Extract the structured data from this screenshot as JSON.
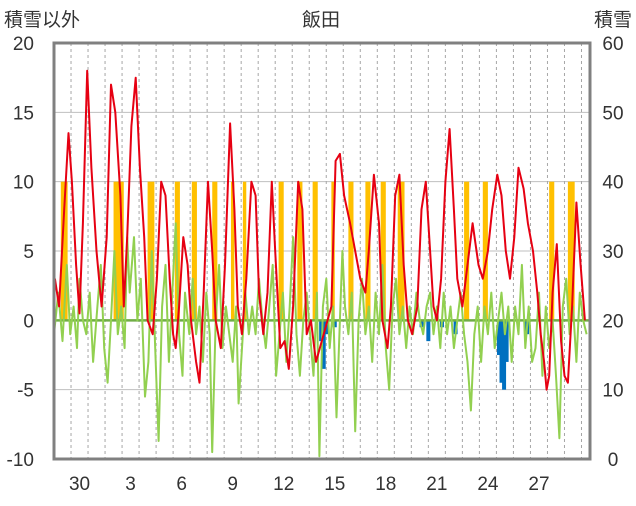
{
  "chart_data": {
    "type": "line",
    "title": "飯田",
    "left_axis_label": "積雪以外",
    "right_axis_label": "積雪",
    "y_left": {
      "min": -10,
      "max": 20,
      "ticks": [
        -10,
        -5,
        0,
        5,
        10,
        15,
        20
      ]
    },
    "y_right": {
      "min": 0,
      "max": 60,
      "ticks": [
        0,
        10,
        20,
        30,
        40,
        50,
        60
      ]
    },
    "x": {
      "min": 0,
      "max": 31.5,
      "ticks": [
        {
          "v": 1.5,
          "label": "30"
        },
        {
          "v": 4.5,
          "label": "3"
        },
        {
          "v": 7.5,
          "label": "6"
        },
        {
          "v": 10.5,
          "label": "9"
        },
        {
          "v": 13.5,
          "label": "12"
        },
        {
          "v": 16.5,
          "label": "15"
        },
        {
          "v": 19.5,
          "label": "18"
        },
        {
          "v": 22.5,
          "label": "21"
        },
        {
          "v": 25.5,
          "label": "24"
        },
        {
          "v": 28.5,
          "label": "27"
        }
      ]
    },
    "grid": true,
    "colors": {
      "temperature": "#e60012",
      "sunshine": "#ffc000",
      "wind": "#92d050",
      "precipitation": "#0070c0",
      "baseline": "#7030a0",
      "zero_line": "#70ad47",
      "frame": "#808080"
    },
    "sunshine_bars": [
      [
        0.4,
        0.8
      ],
      [
        3.5,
        4.1
      ],
      [
        5.5,
        5.9
      ],
      [
        7.1,
        7.4
      ],
      [
        8.1,
        8.4
      ],
      [
        9.3,
        9.6
      ],
      [
        10.4,
        10.6
      ],
      [
        11.1,
        11.3
      ],
      [
        13.2,
        13.5
      ],
      [
        14.3,
        14.6
      ],
      [
        15.2,
        15.5
      ],
      [
        16.3,
        16.5
      ],
      [
        17.3,
        17.6
      ],
      [
        18.3,
        18.6
      ],
      [
        19.2,
        19.5
      ],
      [
        20.2,
        20.6
      ],
      [
        24.1,
        24.4
      ],
      [
        25.2,
        25.5
      ],
      [
        29.1,
        29.4
      ],
      [
        30.2,
        30.6
      ]
    ],
    "precipitation_bars": [
      {
        "x": 15.7,
        "v": -1.5
      },
      {
        "x": 15.85,
        "v": -3.5
      },
      {
        "x": 16.05,
        "v": -1.0
      },
      {
        "x": 16.5,
        "v": -0.5
      },
      {
        "x": 21.6,
        "v": -0.5
      },
      {
        "x": 22.0,
        "v": -1.5
      },
      {
        "x": 22.8,
        "v": -0.5
      },
      {
        "x": 23.6,
        "v": -1.0
      },
      {
        "x": 26.15,
        "v": -2.5
      },
      {
        "x": 26.3,
        "v": -4.5
      },
      {
        "x": 26.45,
        "v": -5.0
      },
      {
        "x": 26.6,
        "v": -3.0
      },
      {
        "x": 27.8,
        "v": -1.0
      }
    ],
    "temperature_series": [
      [
        0.05,
        3
      ],
      [
        0.3,
        1
      ],
      [
        0.6,
        8
      ],
      [
        0.85,
        13.5
      ],
      [
        1.05,
        10
      ],
      [
        1.3,
        4
      ],
      [
        1.5,
        0.5
      ],
      [
        1.7,
        7
      ],
      [
        1.95,
        18
      ],
      [
        2.2,
        11
      ],
      [
        2.5,
        5
      ],
      [
        2.8,
        1
      ],
      [
        3.1,
        6
      ],
      [
        3.35,
        17
      ],
      [
        3.6,
        15
      ],
      [
        3.9,
        9
      ],
      [
        4.1,
        1
      ],
      [
        4.3,
        6
      ],
      [
        4.55,
        14
      ],
      [
        4.8,
        17.5
      ],
      [
        5.05,
        11
      ],
      [
        5.3,
        6
      ],
      [
        5.5,
        0
      ],
      [
        5.8,
        -1
      ],
      [
        6.05,
        3
      ],
      [
        6.3,
        10
      ],
      [
        6.55,
        9
      ],
      [
        6.8,
        3
      ],
      [
        7.0,
        -1
      ],
      [
        7.15,
        -2
      ],
      [
        7.35,
        1
      ],
      [
        7.6,
        6
      ],
      [
        7.85,
        4
      ],
      [
        8.05,
        0
      ],
      [
        8.35,
        -3
      ],
      [
        8.55,
        -4.5
      ],
      [
        8.8,
        2
      ],
      [
        9.05,
        10
      ],
      [
        9.3,
        5
      ],
      [
        9.5,
        0
      ],
      [
        9.8,
        -2
      ],
      [
        10.05,
        4
      ],
      [
        10.35,
        14.2
      ],
      [
        10.6,
        8
      ],
      [
        10.8,
        1
      ],
      [
        11.05,
        -1
      ],
      [
        11.3,
        3
      ],
      [
        11.6,
        10
      ],
      [
        11.85,
        9
      ],
      [
        12.05,
        2
      ],
      [
        12.3,
        -1
      ],
      [
        12.55,
        2
      ],
      [
        12.8,
        10
      ],
      [
        13.0,
        5
      ],
      [
        13.3,
        -2
      ],
      [
        13.55,
        -1.5
      ],
      [
        13.8,
        -3.5
      ],
      [
        14.05,
        1
      ],
      [
        14.35,
        10
      ],
      [
        14.6,
        8
      ],
      [
        14.85,
        -1
      ],
      [
        15.1,
        0
      ],
      [
        15.4,
        -3
      ],
      [
        16.3,
        1
      ],
      [
        16.55,
        11.5
      ],
      [
        16.8,
        12
      ],
      [
        17.05,
        9
      ],
      [
        17.4,
        7
      ],
      [
        17.7,
        5
      ],
      [
        18.0,
        3
      ],
      [
        18.3,
        2
      ],
      [
        18.5,
        5
      ],
      [
        18.8,
        10.5
      ],
      [
        19.1,
        7
      ],
      [
        19.3,
        0
      ],
      [
        19.6,
        -2
      ],
      [
        19.8,
        1
      ],
      [
        20.05,
        9
      ],
      [
        20.3,
        10.5
      ],
      [
        20.55,
        4
      ],
      [
        20.8,
        0
      ],
      [
        21.05,
        -1
      ],
      [
        21.35,
        1
      ],
      [
        21.6,
        8
      ],
      [
        21.85,
        10
      ],
      [
        22.1,
        5
      ],
      [
        22.3,
        1
      ],
      [
        22.5,
        0
      ],
      [
        22.75,
        3
      ],
      [
        23.0,
        10
      ],
      [
        23.25,
        13.8
      ],
      [
        23.5,
        8
      ],
      [
        23.7,
        3
      ],
      [
        24.0,
        1
      ],
      [
        24.3,
        4
      ],
      [
        24.6,
        7
      ],
      [
        24.95,
        4
      ],
      [
        25.2,
        3
      ],
      [
        25.5,
        5
      ],
      [
        25.75,
        8
      ],
      [
        26.05,
        10.5
      ],
      [
        26.3,
        9
      ],
      [
        26.55,
        5
      ],
      [
        26.8,
        3
      ],
      [
        27.05,
        6
      ],
      [
        27.3,
        11
      ],
      [
        27.6,
        9.5
      ],
      [
        27.85,
        7
      ],
      [
        28.15,
        5
      ],
      [
        28.4,
        2
      ],
      [
        28.6,
        -1
      ],
      [
        28.8,
        -3
      ],
      [
        28.95,
        -5
      ],
      [
        29.1,
        -4
      ],
      [
        29.3,
        2
      ],
      [
        29.55,
        5.5
      ],
      [
        29.8,
        -1.5
      ],
      [
        30.0,
        -4
      ],
      [
        30.2,
        -4.5
      ],
      [
        30.45,
        1
      ],
      [
        30.7,
        8.5
      ],
      [
        30.95,
        4
      ],
      [
        31.2,
        0
      ]
    ],
    "wind_series": [
      [
        0.0,
        -1
      ],
      [
        0.25,
        2
      ],
      [
        0.5,
        -1.5
      ],
      [
        0.75,
        4
      ],
      [
        0.95,
        -1
      ],
      [
        1.15,
        1
      ],
      [
        1.35,
        -2
      ],
      [
        1.5,
        3
      ],
      [
        1.7,
        0
      ],
      [
        1.9,
        -1
      ],
      [
        2.1,
        2
      ],
      [
        2.3,
        -3
      ],
      [
        2.55,
        1
      ],
      [
        2.75,
        4
      ],
      [
        2.95,
        -2
      ],
      [
        3.15,
        -4.5
      ],
      [
        3.35,
        0
      ],
      [
        3.55,
        5
      ],
      [
        3.75,
        -1
      ],
      [
        3.95,
        1
      ],
      [
        4.15,
        -2
      ],
      [
        4.3,
        6
      ],
      [
        4.45,
        2
      ],
      [
        4.7,
        6
      ],
      [
        4.9,
        0
      ],
      [
        5.1,
        3
      ],
      [
        5.35,
        -5.5
      ],
      [
        5.55,
        -3
      ],
      [
        5.75,
        5
      ],
      [
        5.95,
        -2
      ],
      [
        6.15,
        -8.7
      ],
      [
        6.35,
        1
      ],
      [
        6.55,
        4
      ],
      [
        6.75,
        -3
      ],
      [
        6.95,
        2
      ],
      [
        7.15,
        7
      ],
      [
        7.35,
        -1
      ],
      [
        7.55,
        -4
      ],
      [
        7.7,
        2
      ],
      [
        7.95,
        -1
      ],
      [
        8.15,
        3
      ],
      [
        8.35,
        -1
      ],
      [
        8.55,
        1
      ],
      [
        8.75,
        -3
      ],
      [
        8.95,
        2
      ],
      [
        9.15,
        -1
      ],
      [
        9.3,
        -9.5
      ],
      [
        9.5,
        0
      ],
      [
        9.7,
        4
      ],
      [
        9.9,
        -2
      ],
      [
        10.1,
        1
      ],
      [
        10.3,
        -1
      ],
      [
        10.5,
        -3
      ],
      [
        10.7,
        1
      ],
      [
        10.85,
        -6
      ],
      [
        11.05,
        -2
      ],
      [
        11.25,
        2
      ],
      [
        11.45,
        -1
      ],
      [
        11.65,
        1
      ],
      [
        11.85,
        -1
      ],
      [
        12.05,
        3
      ],
      [
        12.25,
        0
      ],
      [
        12.45,
        -2
      ],
      [
        12.65,
        1
      ],
      [
        12.85,
        4
      ],
      [
        13.05,
        -4
      ],
      [
        13.25,
        -1
      ],
      [
        13.45,
        2
      ],
      [
        13.65,
        -3
      ],
      [
        13.85,
        1
      ],
      [
        14.05,
        6
      ],
      [
        14.25,
        -1
      ],
      [
        14.45,
        -4
      ],
      [
        14.65,
        0
      ],
      [
        14.85,
        2
      ],
      [
        15.05,
        -1
      ],
      [
        15.25,
        -4
      ],
      [
        15.45,
        2
      ],
      [
        15.6,
        -9.8
      ],
      [
        15.8,
        1
      ],
      [
        16.0,
        3
      ],
      [
        16.2,
        -2
      ],
      [
        16.4,
        1
      ],
      [
        16.6,
        -7
      ],
      [
        16.8,
        0
      ],
      [
        16.95,
        5
      ],
      [
        17.1,
        1
      ],
      [
        17.3,
        -1
      ],
      [
        17.5,
        2
      ],
      [
        17.7,
        -8
      ],
      [
        17.9,
        0
      ],
      [
        18.1,
        3
      ],
      [
        18.3,
        -1
      ],
      [
        18.5,
        1
      ],
      [
        18.7,
        -3
      ],
      [
        18.9,
        2
      ],
      [
        19.1,
        -1
      ],
      [
        19.3,
        4
      ],
      [
        19.5,
        -2
      ],
      [
        19.7,
        -5
      ],
      [
        19.9,
        1
      ],
      [
        20.1,
        3
      ],
      [
        20.3,
        -1
      ],
      [
        20.5,
        1
      ],
      [
        20.7,
        -2
      ],
      [
        20.9,
        1
      ],
      [
        21.1,
        -1
      ],
      [
        21.3,
        2
      ],
      [
        21.5,
        0
      ],
      [
        21.7,
        -1
      ],
      [
        21.9,
        1
      ],
      [
        22.1,
        2
      ],
      [
        22.3,
        -1
      ],
      [
        22.5,
        1
      ],
      [
        22.7,
        -2
      ],
      [
        22.9,
        2
      ],
      [
        23.1,
        -1
      ],
      [
        23.3,
        1
      ],
      [
        23.5,
        -2
      ],
      [
        23.7,
        0
      ],
      [
        23.9,
        2
      ],
      [
        24.1,
        -1
      ],
      [
        24.3,
        -3
      ],
      [
        24.5,
        -6.5
      ],
      [
        24.7,
        -1
      ],
      [
        24.9,
        1
      ],
      [
        25.1,
        -3
      ],
      [
        25.3,
        1
      ],
      [
        25.5,
        -1
      ],
      [
        25.7,
        2
      ],
      [
        25.9,
        -2
      ],
      [
        26.1,
        0
      ],
      [
        26.3,
        2
      ],
      [
        26.5,
        -1
      ],
      [
        26.7,
        1
      ],
      [
        26.9,
        -3
      ],
      [
        27.1,
        1
      ],
      [
        27.3,
        -1
      ],
      [
        27.5,
        4
      ],
      [
        27.7,
        -2
      ],
      [
        27.9,
        1
      ],
      [
        28.1,
        -3
      ],
      [
        28.3,
        -2
      ],
      [
        28.5,
        2
      ],
      [
        28.7,
        -4
      ],
      [
        28.9,
        1
      ],
      [
        29.1,
        -2
      ],
      [
        29.3,
        0
      ],
      [
        29.5,
        -4
      ],
      [
        29.7,
        -8.5
      ],
      [
        29.9,
        1
      ],
      [
        30.1,
        3
      ],
      [
        30.3,
        -1
      ],
      [
        30.5,
        1
      ],
      [
        30.7,
        -3
      ],
      [
        30.9,
        2
      ],
      [
        31.1,
        0
      ],
      [
        31.3,
        -1
      ]
    ]
  }
}
